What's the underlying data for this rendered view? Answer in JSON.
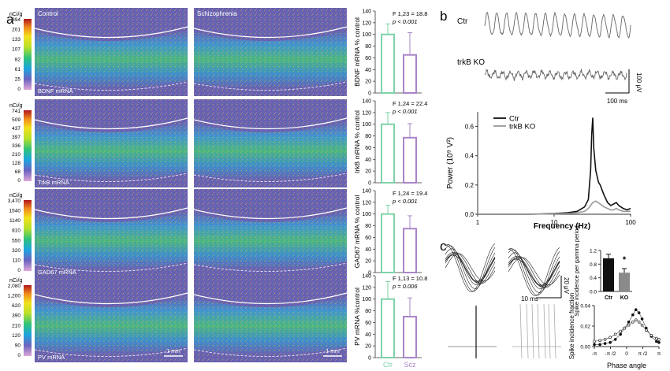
{
  "panel_labels": {
    "a": "a",
    "b": "b",
    "c": "c"
  },
  "panel_a": {
    "heatmaps": [
      {
        "left_label": "Control",
        "right_label": "Schizophrenia",
        "mrna_label": "BDNF mRNA",
        "scale_unit": "nCi/g",
        "scale_ticks": [
          "394",
          "201",
          "133",
          "107",
          "82",
          "61",
          "25",
          "0"
        ]
      },
      {
        "left_label": "",
        "right_label": "",
        "mrna_label": "TrkB mRNA",
        "scale_unit": "nCi/g",
        "scale_ticks": [
          "741",
          "509",
          "437",
          "397",
          "336",
          "210",
          "128",
          "68",
          "0"
        ]
      },
      {
        "left_label": "",
        "right_label": "",
        "mrna_label": "GAD67 mRNA",
        "scale_unit": "nCi/g",
        "scale_ticks": [
          "3,470",
          "1540",
          "1140",
          "810",
          "550",
          "320",
          "110",
          "0"
        ]
      },
      {
        "left_label": "",
        "right_label": "",
        "mrna_label": "PV mRNA",
        "scale_unit": "nCi/g",
        "scale_ticks": [
          "2,080",
          "1,200",
          "620",
          "390",
          "210",
          "120",
          "90",
          "0"
        ]
      }
    ],
    "scale_bar_label": "1 mm"
  },
  "chart_data": [
    {
      "type": "bar",
      "categories": [
        "Ctr",
        "Scz"
      ],
      "ylabel": "BDNF mRNA % control",
      "ylim": [
        0,
        140
      ],
      "yticks": [
        "0",
        "20",
        "40",
        "60",
        "80",
        "100",
        "120",
        "140"
      ],
      "series": [
        {
          "values": [
            100,
            65
          ],
          "errors": [
            18,
            38
          ]
        }
      ],
      "stat_line1": "F 1,23 = 18.8",
      "stat_line2": "p < 0.001",
      "colors": [
        "#7fd3a8",
        "#a985c8"
      ]
    },
    {
      "type": "bar",
      "categories": [
        "Ctr",
        "Scz"
      ],
      "ylabel": "trkB mRNA % control",
      "ylim": [
        0,
        140
      ],
      "yticks": [
        "0",
        "20",
        "40",
        "60",
        "80",
        "100",
        "120",
        "140"
      ],
      "series": [
        {
          "values": [
            100,
            77
          ],
          "errors": [
            20,
            24
          ]
        }
      ],
      "stat_line1": "F 1,24 = 22.4",
      "stat_line2": "p < 0.001",
      "colors": [
        "#7fd3a8",
        "#a985c8"
      ]
    },
    {
      "type": "bar",
      "categories": [
        "Ctr",
        "Scz"
      ],
      "ylabel": "GAD67 mRNA % control",
      "ylim": [
        0,
        140
      ],
      "yticks": [
        "0",
        "20",
        "40",
        "60",
        "80",
        "100",
        "120",
        "140"
      ],
      "series": [
        {
          "values": [
            100,
            75
          ],
          "errors": [
            15,
            22
          ]
        }
      ],
      "stat_line1": "F 1,24 = 19.4",
      "stat_line2": "p < 0.001",
      "colors": [
        "#7fd3a8",
        "#a985c8"
      ]
    },
    {
      "type": "bar",
      "categories": [
        "Ctr",
        "Scz"
      ],
      "ylabel": "PV mRNA %control",
      "ylim": [
        0,
        140
      ],
      "yticks": [
        "0",
        "20",
        "40",
        "60",
        "80",
        "100",
        "120",
        "140"
      ],
      "series": [
        {
          "values": [
            100,
            70
          ],
          "errors": [
            30,
            32
          ]
        }
      ],
      "stat_line1": "F 1,13 = 10.8",
      "stat_line2": "p = 0.006",
      "colors": [
        "#7fd3a8",
        "#a985c8"
      ]
    },
    {
      "type": "line",
      "xlabel": "Frequency  (Hz)",
      "ylabel": "Power (10⁹ V²)",
      "xscale": "log",
      "xlim": [
        1,
        100
      ],
      "ylim": [
        0,
        0.7
      ],
      "yticks": [
        "0.0",
        "0.2",
        "0.4",
        "0.6"
      ],
      "xticks": [
        "1",
        "10",
        "100"
      ],
      "series": [
        {
          "name": "Ctr",
          "color": "#111111",
          "x": [
            1,
            5,
            10,
            15,
            20,
            25,
            28,
            30,
            31,
            32,
            33,
            35,
            38,
            40,
            45,
            50,
            55,
            60,
            65,
            70,
            80,
            90,
            100
          ],
          "y": [
            0.0,
            0.0,
            0.005,
            0.01,
            0.02,
            0.05,
            0.1,
            0.3,
            0.55,
            0.66,
            0.45,
            0.3,
            0.22,
            0.2,
            0.13,
            0.08,
            0.06,
            0.07,
            0.08,
            0.06,
            0.04,
            0.03,
            0.04
          ]
        },
        {
          "name": "trkB KO",
          "color": "#999999",
          "x": [
            1,
            5,
            10,
            15,
            20,
            25,
            28,
            30,
            32,
            35,
            40,
            45,
            50,
            55,
            60,
            65,
            70,
            80,
            90,
            100
          ],
          "y": [
            0.0,
            0.0,
            0.003,
            0.005,
            0.01,
            0.02,
            0.04,
            0.06,
            0.08,
            0.09,
            0.07,
            0.05,
            0.04,
            0.03,
            0.03,
            0.04,
            0.03,
            0.02,
            0.02,
            0.02
          ]
        }
      ]
    },
    {
      "type": "bar",
      "categories": [
        "Ctr",
        "KO"
      ],
      "ylabel": "Spike incidence per gamma period",
      "ylim": [
        0,
        1.2
      ],
      "yticks": [
        "0.0",
        "0.4",
        "0.8",
        "1.2"
      ],
      "series": [
        {
          "values": [
            0.97,
            0.55
          ],
          "errors": [
            0.12,
            0.12
          ]
        }
      ],
      "annotation": "*",
      "colors": [
        "#111111",
        "#8a8a8a"
      ]
    },
    {
      "type": "scatter",
      "xlabel": "Phase angle",
      "ylabel": "Spike incidence fraction",
      "ylim": [
        0,
        0.04
      ],
      "yticks": [
        "0.00",
        "0.02",
        "0.04"
      ],
      "xticks": [
        "-π",
        "-π /2",
        "0",
        "π /2",
        "π"
      ],
      "series": [
        {
          "name": "Ctr",
          "marker": "filled",
          "x": [
            -3.14,
            -2.6,
            -2.1,
            -1.6,
            -1.1,
            -0.6,
            -0.2,
            0.2,
            0.6,
            0.9,
            1.2,
            1.5,
            1.9,
            2.4,
            2.9,
            3.14
          ],
          "y": [
            0.002,
            0.002,
            0.003,
            0.004,
            0.007,
            0.012,
            0.018,
            0.024,
            0.031,
            0.036,
            0.033,
            0.027,
            0.018,
            0.01,
            0.005,
            0.004
          ]
        },
        {
          "name": "KO",
          "marker": "open",
          "x": [
            -3.14,
            -2.6,
            -2.1,
            -1.6,
            -1.1,
            -0.6,
            -0.2,
            0.2,
            0.6,
            0.9,
            1.2,
            1.5,
            1.9,
            2.4,
            2.9,
            3.14
          ],
          "y": [
            0.005,
            0.006,
            0.007,
            0.009,
            0.012,
            0.015,
            0.018,
            0.021,
            0.024,
            0.026,
            0.024,
            0.021,
            0.016,
            0.011,
            0.008,
            0.007
          ]
        }
      ]
    }
  ],
  "panel_b": {
    "trace_labels": [
      "Ctr",
      "trkB KO"
    ],
    "scale_v": "100 μV",
    "scale_t": "100 ms",
    "legend": [
      "Ctr",
      "trkB KO"
    ]
  },
  "panel_c": {
    "scale_v": "20 μV",
    "scale_t": "10 ms"
  },
  "colors": {
    "heat_bg": "#6b5fb0",
    "ctr_bar": "#7fd3a8",
    "scz_bar": "#a985c8",
    "ctr_trace": "#111111",
    "ko_trace": "#999999"
  }
}
